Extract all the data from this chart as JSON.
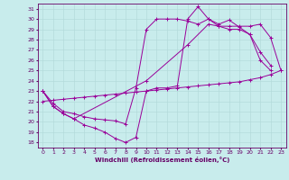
{
  "xlabel": "Windchill (Refroidissement éolien,°C)",
  "background_color": "#c8ecec",
  "line_color": "#990099",
  "grid_color": "#b0d8d8",
  "xlim": [
    -0.5,
    23.5
  ],
  "ylim": [
    17.5,
    31.5
  ],
  "xticks": [
    0,
    1,
    2,
    3,
    4,
    5,
    6,
    7,
    8,
    9,
    10,
    11,
    12,
    13,
    14,
    15,
    16,
    17,
    18,
    19,
    20,
    21,
    22,
    23
  ],
  "yticks": [
    18,
    19,
    20,
    21,
    22,
    23,
    24,
    25,
    26,
    27,
    28,
    29,
    30,
    31
  ],
  "c1x": [
    0,
    1,
    2,
    3,
    4,
    5,
    6,
    7,
    8,
    9,
    10,
    11,
    12,
    13,
    14,
    15,
    16,
    17,
    18,
    19,
    20,
    21,
    22
  ],
  "c1y": [
    23.0,
    21.5,
    20.8,
    20.3,
    19.7,
    19.4,
    19.0,
    18.4,
    18.0,
    18.5,
    23.0,
    23.3,
    23.3,
    23.5,
    30.0,
    31.2,
    30.0,
    29.5,
    29.9,
    29.2,
    28.5,
    26.0,
    25.0
  ],
  "c2x": [
    0,
    1,
    2,
    3,
    4,
    5,
    6,
    7,
    8,
    9,
    10,
    11,
    12,
    13,
    14,
    15,
    16,
    17,
    18,
    19,
    20,
    21,
    22
  ],
  "c2y": [
    23.0,
    21.8,
    21.0,
    20.8,
    20.5,
    20.3,
    20.2,
    20.1,
    19.8,
    23.3,
    29.0,
    30.0,
    30.0,
    30.0,
    29.8,
    29.5,
    30.0,
    29.3,
    29.0,
    29.0,
    28.5,
    26.8,
    25.5
  ],
  "c3x": [
    0,
    1,
    2,
    3,
    4,
    5,
    6,
    7,
    8,
    9,
    10,
    11,
    12,
    13,
    14,
    15,
    16,
    17,
    18,
    19,
    20,
    21,
    22,
    23
  ],
  "c3y": [
    22.0,
    22.1,
    22.2,
    22.3,
    22.4,
    22.5,
    22.6,
    22.7,
    22.8,
    22.9,
    23.0,
    23.1,
    23.2,
    23.3,
    23.4,
    23.5,
    23.6,
    23.7,
    23.8,
    23.9,
    24.1,
    24.3,
    24.6,
    25.0
  ],
  "c4x": [
    0,
    1,
    2,
    3,
    10,
    14,
    16,
    17,
    18,
    19,
    20,
    21,
    22,
    23
  ],
  "c4y": [
    23.0,
    21.5,
    20.8,
    20.3,
    24.0,
    27.5,
    29.5,
    29.3,
    29.3,
    29.3,
    29.3,
    29.5,
    28.2,
    25.0
  ]
}
